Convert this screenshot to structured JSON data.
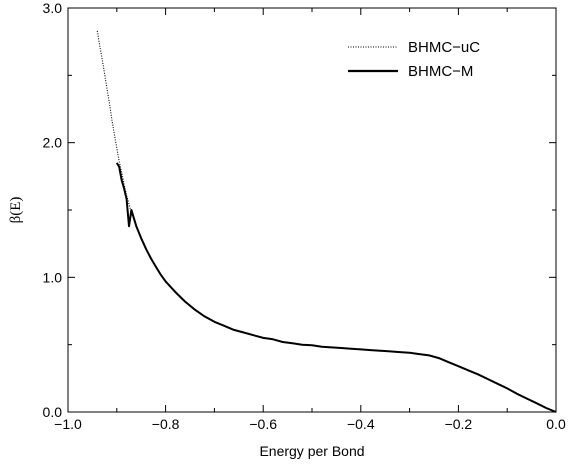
{
  "chart_data": {
    "type": "line",
    "xlabel": "Energy per Bond",
    "ylabel": "β(E)",
    "xlim": [
      -1.0,
      0.0
    ],
    "ylim": [
      0.0,
      3.0
    ],
    "x_ticks": [
      -1.0,
      -0.8,
      -0.6,
      -0.4,
      -0.2,
      0.0
    ],
    "x_tick_labels": [
      "−1.0",
      "−0.8",
      "−0.6",
      "−0.4",
      "−0.2",
      "0.0"
    ],
    "y_ticks": [
      0.0,
      1.0,
      2.0,
      3.0
    ],
    "y_tick_labels": [
      "0.0",
      "1.0",
      "2.0",
      "3.0"
    ],
    "grid": false,
    "legend_position": "top-right",
    "series": [
      {
        "name": "BHMC−uC",
        "style": "dotted",
        "color": "#000000",
        "x": [
          -0.94,
          -0.935,
          -0.93,
          -0.925,
          -0.92,
          -0.915,
          -0.91,
          -0.905,
          -0.9,
          -0.895,
          -0.89,
          -0.885,
          -0.88,
          -0.87,
          -0.86,
          -0.85,
          -0.84,
          -0.83,
          -0.82,
          -0.81,
          -0.8,
          -0.78,
          -0.76,
          -0.74,
          -0.72,
          -0.7,
          -0.68,
          -0.66,
          -0.64,
          -0.62,
          -0.6,
          -0.58,
          -0.56,
          -0.54,
          -0.52,
          -0.5,
          -0.48,
          -0.46,
          -0.44,
          -0.42,
          -0.4,
          -0.38,
          -0.36,
          -0.34,
          -0.32,
          -0.3,
          -0.28,
          -0.26,
          -0.24,
          -0.22,
          -0.2,
          -0.18,
          -0.16,
          -0.14,
          -0.12,
          -0.1,
          -0.08,
          -0.06,
          -0.04,
          -0.02,
          0.0
        ],
        "y": [
          2.83,
          2.72,
          2.62,
          2.51,
          2.4,
          2.29,
          2.17,
          2.06,
          1.96,
          1.86,
          1.78,
          1.69,
          1.61,
          1.48,
          1.38,
          1.29,
          1.21,
          1.14,
          1.08,
          1.02,
          0.97,
          0.89,
          0.82,
          0.76,
          0.71,
          0.67,
          0.64,
          0.61,
          0.59,
          0.57,
          0.55,
          0.54,
          0.52,
          0.51,
          0.5,
          0.495,
          0.485,
          0.48,
          0.475,
          0.47,
          0.465,
          0.46,
          0.455,
          0.45,
          0.445,
          0.44,
          0.43,
          0.42,
          0.4,
          0.37,
          0.34,
          0.31,
          0.28,
          0.245,
          0.21,
          0.175,
          0.135,
          0.1,
          0.065,
          0.03,
          0.0
        ]
      },
      {
        "name": "BHMC−M",
        "style": "solid",
        "color": "#000000",
        "x": [
          -0.9,
          -0.895,
          -0.89,
          -0.885,
          -0.88,
          -0.875,
          -0.87,
          -0.86,
          -0.85,
          -0.84,
          -0.83,
          -0.82,
          -0.81,
          -0.8,
          -0.78,
          -0.76,
          -0.74,
          -0.72,
          -0.7,
          -0.68,
          -0.66,
          -0.64,
          -0.62,
          -0.6,
          -0.58,
          -0.56,
          -0.54,
          -0.52,
          -0.5,
          -0.48,
          -0.46,
          -0.44,
          -0.42,
          -0.4,
          -0.38,
          -0.36,
          -0.34,
          -0.32,
          -0.3,
          -0.28,
          -0.26,
          -0.24,
          -0.22,
          -0.2,
          -0.18,
          -0.16,
          -0.14,
          -0.12,
          -0.1,
          -0.08,
          -0.06,
          -0.04,
          -0.02,
          0.0
        ],
        "y": [
          1.85,
          1.82,
          1.72,
          1.66,
          1.58,
          1.38,
          1.5,
          1.38,
          1.29,
          1.21,
          1.14,
          1.08,
          1.02,
          0.97,
          0.89,
          0.82,
          0.76,
          0.71,
          0.67,
          0.64,
          0.61,
          0.59,
          0.57,
          0.55,
          0.54,
          0.52,
          0.51,
          0.5,
          0.495,
          0.485,
          0.48,
          0.475,
          0.47,
          0.465,
          0.46,
          0.455,
          0.45,
          0.445,
          0.44,
          0.43,
          0.42,
          0.4,
          0.37,
          0.34,
          0.31,
          0.28,
          0.245,
          0.21,
          0.175,
          0.135,
          0.1,
          0.065,
          0.03,
          0.0
        ]
      }
    ]
  }
}
